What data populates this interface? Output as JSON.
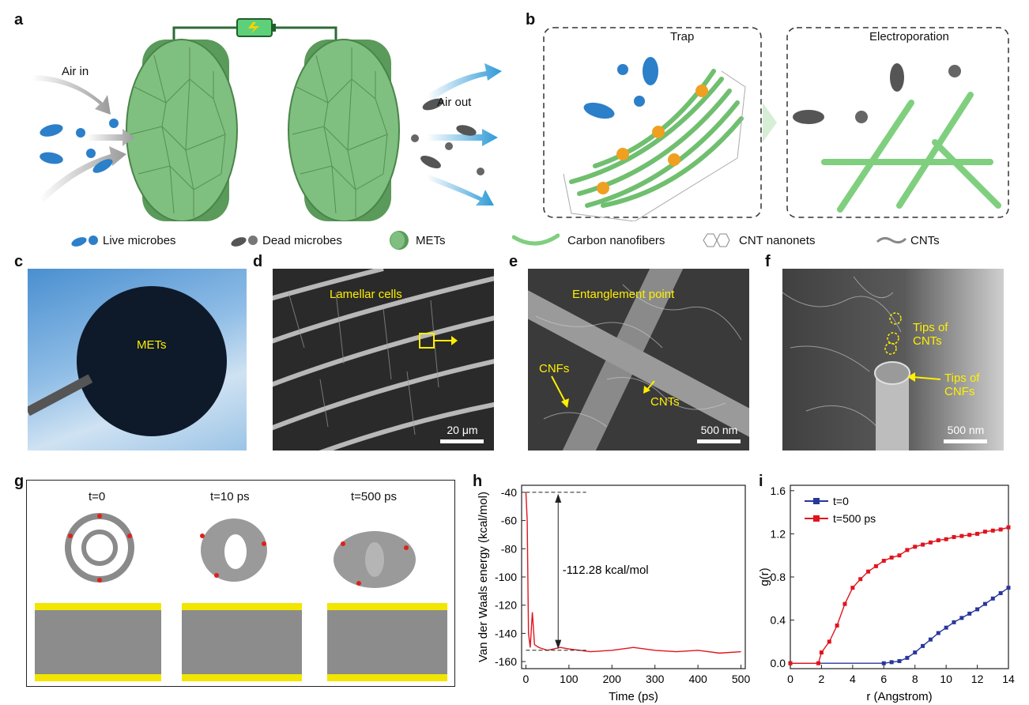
{
  "panel_labels": {
    "a": "a",
    "b": "b",
    "c": "c",
    "d": "d",
    "e": "e",
    "f": "f",
    "g": "g",
    "h": "h",
    "i": "i"
  },
  "panel_a": {
    "air_in": "Air in",
    "air_out": "Air out"
  },
  "panel_b": {
    "trap": "Trap",
    "electroporation": "Electroporation"
  },
  "legend": {
    "live": "Live microbes",
    "dead": "Dead microbes",
    "mets": "METs",
    "cnf": "Carbon nanofibers",
    "nanonets": "CNT nanonets",
    "cnts": "CNTs"
  },
  "panel_c": {
    "label": "METs"
  },
  "panel_d": {
    "label": "Lamellar cells",
    "scale": "20 μm"
  },
  "panel_e": {
    "label": "Entanglement point",
    "cnfs": "CNFs",
    "cnts": "CNTs",
    "scale": "500 nm"
  },
  "panel_f": {
    "tips_cnts_1": "Tips of",
    "tips_cnts_2": "CNTs",
    "tips_cnfs_1": "Tips of",
    "tips_cnfs_2": "CNFs",
    "scale": "500 nm"
  },
  "panel_g": {
    "t0": "t=0",
    "t10": "t=10 ps",
    "t500": "t=500 ps"
  },
  "colors": {
    "green": "#7fbf7f",
    "blue": "#2c7fc9",
    "red": "#e0141e",
    "navy": "#28379b",
    "yellow": "#f2e600"
  },
  "chart_data": [
    {
      "type": "line",
      "panel": "h",
      "xlabel": "Time (ps)",
      "ylabel": "Van der Waals energy (kcal/mol)",
      "xlim": [
        -10,
        510
      ],
      "ylim": [
        -165,
        -35
      ],
      "xticks": [
        0,
        100,
        200,
        300,
        400,
        500
      ],
      "yticks": [
        -40,
        -60,
        -80,
        -100,
        -120,
        -140,
        -160
      ],
      "annotation": "-112.28 kcal/mol",
      "series": [
        {
          "color": "#e0141e",
          "x": [
            0,
            3,
            6,
            10,
            15,
            20,
            30,
            50,
            80,
            100,
            150,
            200,
            250,
            300,
            350,
            400,
            450,
            500
          ],
          "y": [
            -40,
            -60,
            -140,
            -150,
            -125,
            -148,
            -150,
            -152,
            -150,
            -151,
            -153,
            -152,
            -150,
            -152,
            -153,
            -152,
            -154,
            -153
          ]
        }
      ]
    },
    {
      "type": "line",
      "panel": "i",
      "xlabel": "r (Angstrom)",
      "ylabel": "g(r)",
      "xlim": [
        0,
        14
      ],
      "ylim": [
        -0.05,
        1.65
      ],
      "xticks": [
        0,
        2,
        4,
        6,
        8,
        10,
        12,
        14
      ],
      "yticks": [
        0.0,
        0.4,
        0.8,
        1.2,
        1.6
      ],
      "legend": "top-left",
      "series": [
        {
          "name": "t=0",
          "color": "#28379b",
          "x": [
            0,
            6,
            6.5,
            7,
            7.5,
            8,
            8.5,
            9,
            9.5,
            10,
            10.5,
            11,
            11.5,
            12,
            12.5,
            13,
            13.5,
            14
          ],
          "y": [
            0,
            0,
            0.01,
            0.02,
            0.05,
            0.1,
            0.16,
            0.22,
            0.28,
            0.33,
            0.38,
            0.42,
            0.46,
            0.5,
            0.55,
            0.6,
            0.65,
            0.7
          ]
        },
        {
          "name": "t=500 ps",
          "color": "#e0141e",
          "x": [
            0,
            1.8,
            2,
            2.5,
            3,
            3.5,
            4,
            4.5,
            5,
            5.5,
            6,
            6.5,
            7,
            7.5,
            8,
            8.5,
            9,
            9.5,
            10,
            10.5,
            11,
            11.5,
            12,
            12.5,
            13,
            13.5,
            14
          ],
          "y": [
            0,
            0,
            0.1,
            0.2,
            0.35,
            0.55,
            0.7,
            0.78,
            0.85,
            0.9,
            0.95,
            0.98,
            1.0,
            1.05,
            1.08,
            1.1,
            1.12,
            1.14,
            1.15,
            1.17,
            1.18,
            1.19,
            1.2,
            1.22,
            1.23,
            1.24,
            1.26
          ]
        }
      ]
    }
  ]
}
